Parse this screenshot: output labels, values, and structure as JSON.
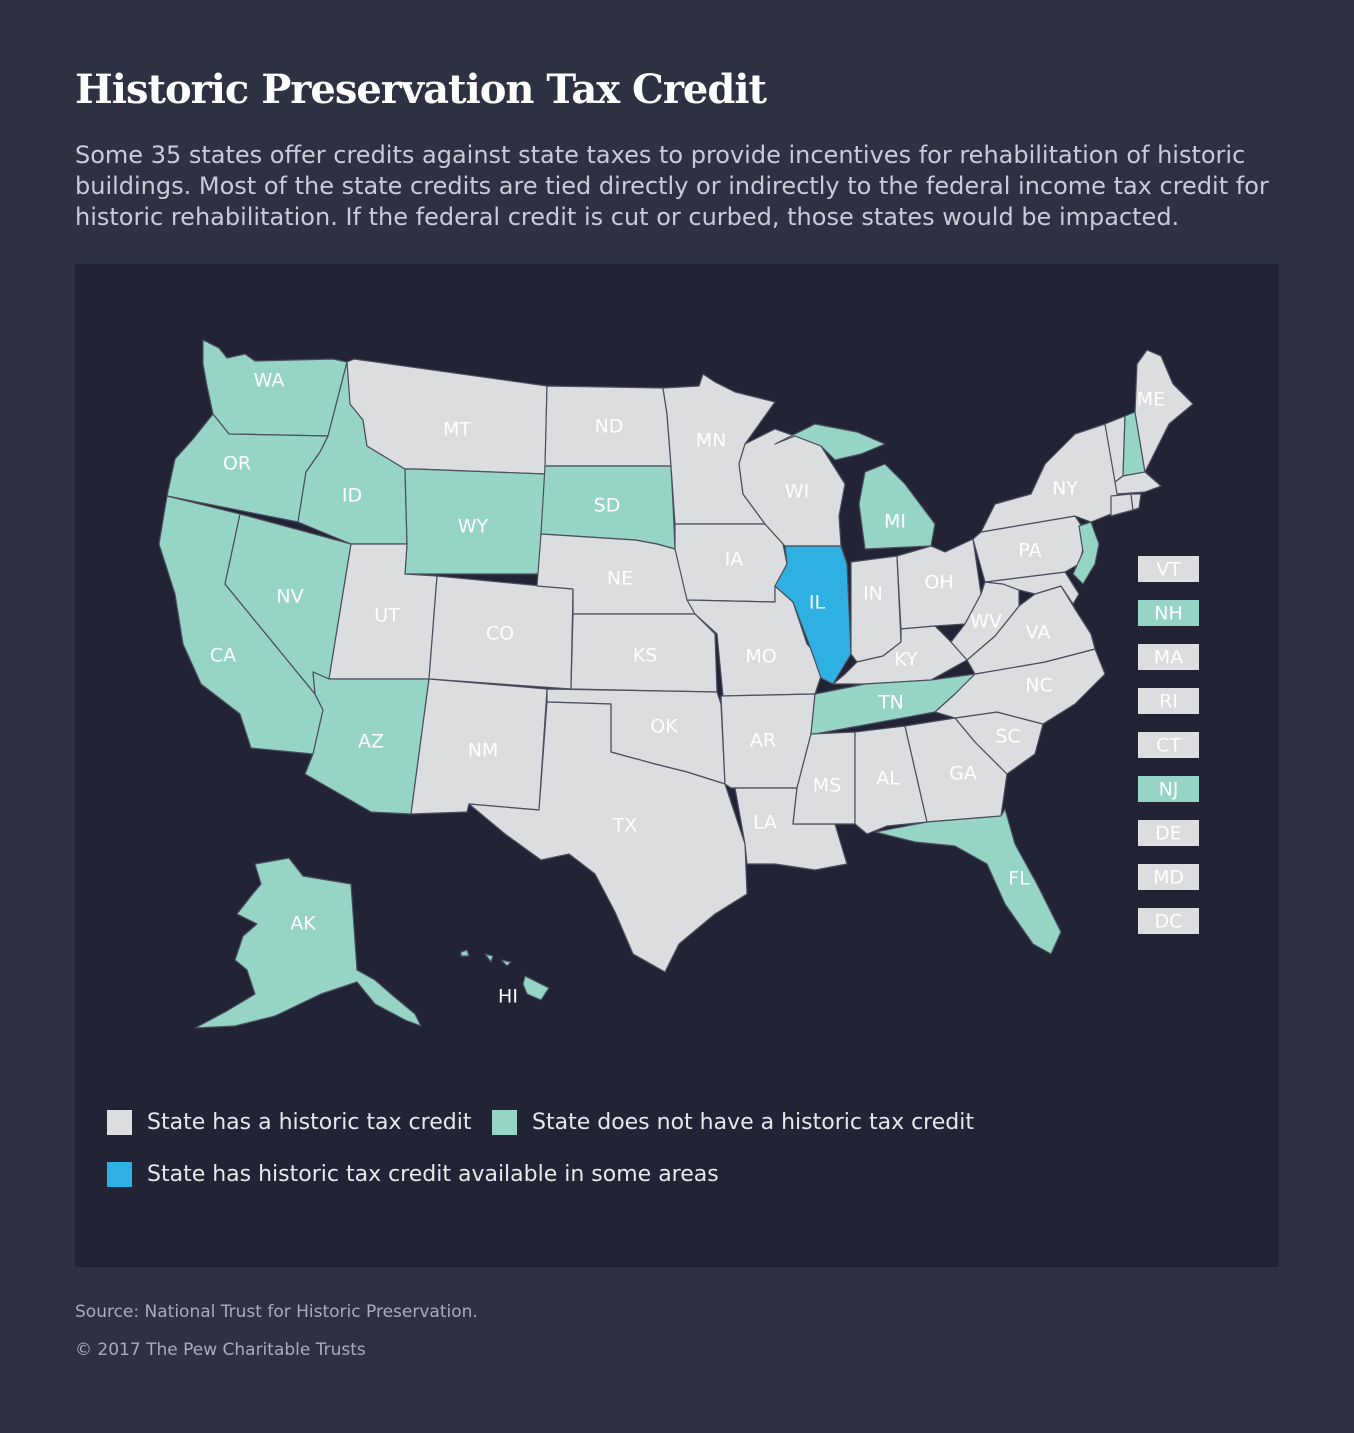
{
  "header": {
    "title": "Historic Preservation Tax Credit",
    "subtitle": "Some 35 states offer credits against state taxes to provide incentives for rehabilitation of historic buildings. Most of the state credits are tied directly or indirectly to the federal income tax credit for historic rehabilitation. If the federal credit is cut or curbed, those states would be impacted."
  },
  "colors": {
    "has_credit": "#dcdddf",
    "no_credit": "#96d4c5",
    "some_areas": "#2eb1e2",
    "background": "#2d3142",
    "panel": "#222435"
  },
  "map": {
    "states": [
      {
        "abbr": "WA",
        "status": "no_credit"
      },
      {
        "abbr": "OR",
        "status": "no_credit"
      },
      {
        "abbr": "CA",
        "status": "no_credit"
      },
      {
        "abbr": "NV",
        "status": "no_credit"
      },
      {
        "abbr": "ID",
        "status": "no_credit"
      },
      {
        "abbr": "MT",
        "status": "has_credit"
      },
      {
        "abbr": "WY",
        "status": "no_credit"
      },
      {
        "abbr": "UT",
        "status": "has_credit"
      },
      {
        "abbr": "AZ",
        "status": "no_credit"
      },
      {
        "abbr": "CO",
        "status": "has_credit"
      },
      {
        "abbr": "NM",
        "status": "has_credit"
      },
      {
        "abbr": "ND",
        "status": "has_credit"
      },
      {
        "abbr": "SD",
        "status": "no_credit"
      },
      {
        "abbr": "NE",
        "status": "has_credit"
      },
      {
        "abbr": "KS",
        "status": "has_credit"
      },
      {
        "abbr": "OK",
        "status": "has_credit"
      },
      {
        "abbr": "TX",
        "status": "has_credit"
      },
      {
        "abbr": "MN",
        "status": "has_credit"
      },
      {
        "abbr": "IA",
        "status": "has_credit"
      },
      {
        "abbr": "MO",
        "status": "has_credit"
      },
      {
        "abbr": "AR",
        "status": "has_credit"
      },
      {
        "abbr": "LA",
        "status": "has_credit"
      },
      {
        "abbr": "WI",
        "status": "has_credit"
      },
      {
        "abbr": "IL",
        "status": "some_areas"
      },
      {
        "abbr": "MI",
        "status": "no_credit"
      },
      {
        "abbr": "IN",
        "status": "has_credit"
      },
      {
        "abbr": "OH",
        "status": "has_credit"
      },
      {
        "abbr": "KY",
        "status": "has_credit"
      },
      {
        "abbr": "TN",
        "status": "no_credit"
      },
      {
        "abbr": "MS",
        "status": "has_credit"
      },
      {
        "abbr": "AL",
        "status": "has_credit"
      },
      {
        "abbr": "GA",
        "status": "has_credit"
      },
      {
        "abbr": "FL",
        "status": "no_credit"
      },
      {
        "abbr": "SC",
        "status": "has_credit"
      },
      {
        "abbr": "NC",
        "status": "has_credit"
      },
      {
        "abbr": "VA",
        "status": "has_credit"
      },
      {
        "abbr": "WV",
        "status": "has_credit"
      },
      {
        "abbr": "PA",
        "status": "has_credit"
      },
      {
        "abbr": "NY",
        "status": "has_credit"
      },
      {
        "abbr": "ME",
        "status": "has_credit"
      },
      {
        "abbr": "AK",
        "status": "no_credit"
      },
      {
        "abbr": "HI",
        "status": "no_credit"
      }
    ],
    "small_states": [
      {
        "abbr": "VT",
        "status": "has_credit"
      },
      {
        "abbr": "NH",
        "status": "no_credit"
      },
      {
        "abbr": "MA",
        "status": "has_credit"
      },
      {
        "abbr": "RI",
        "status": "has_credit"
      },
      {
        "abbr": "CT",
        "status": "has_credit"
      },
      {
        "abbr": "NJ",
        "status": "no_credit"
      },
      {
        "abbr": "DE",
        "status": "has_credit"
      },
      {
        "abbr": "MD",
        "status": "has_credit"
      },
      {
        "abbr": "DC",
        "status": "has_credit"
      }
    ]
  },
  "legend": {
    "has_credit": "State has a historic tax credit",
    "no_credit": "State does not have a historic tax credit",
    "some_areas": "State has historic tax credit available in some areas"
  },
  "footer": {
    "source": "Source: National Trust for Historic Preservation.",
    "copyright": "© 2017 The Pew Charitable Trusts"
  }
}
